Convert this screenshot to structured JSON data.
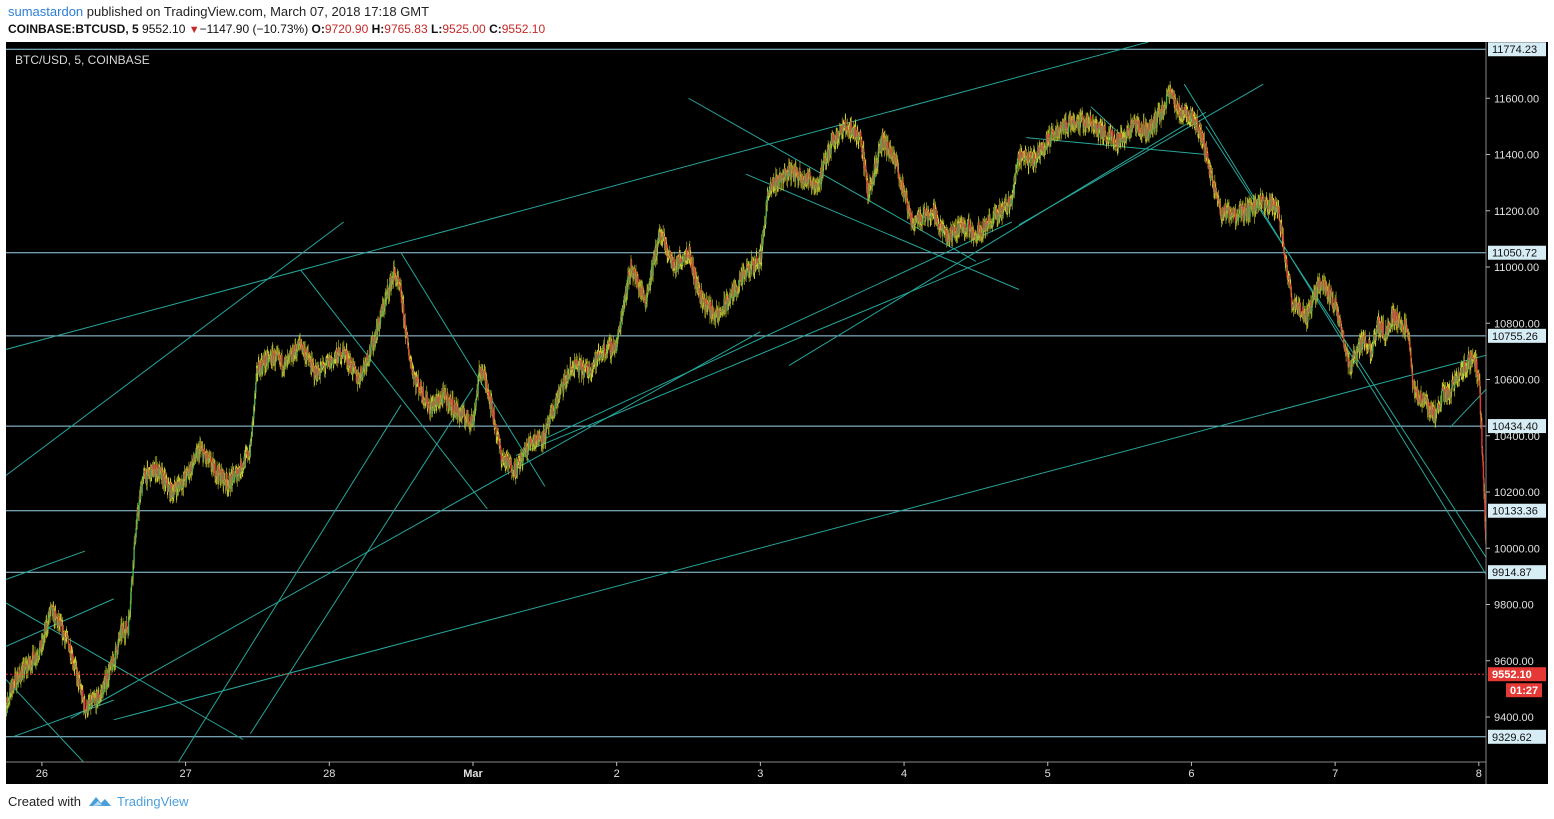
{
  "header": {
    "publisher": "sumastardon",
    "published_text": "published on TradingView.com, March 07, 2018 17:18 GMT",
    "symbol": "COINBASE:BTCUSD, 5",
    "last": "9552.10",
    "change_arrow": "▼",
    "change": "−1147.90 (−10.73%)",
    "o_label": "O:",
    "o_value": "9720.90",
    "h_label": "H:",
    "h_value": "9765.83",
    "l_label": "L:",
    "l_value": "9525.00",
    "c_label": "C:",
    "c_value": "9552.10"
  },
  "footer": {
    "created_with": "Created with",
    "brand": "TradingView"
  },
  "colors": {
    "background": "#000000",
    "up": "#4caf50",
    "down": "#e53935",
    "wick": "#cccc33",
    "trendline": "#26a69a",
    "level": "#9ad3e8",
    "last_price": "#e53935",
    "axis_bg": "#000000"
  },
  "chart_data": {
    "type": "candlestick",
    "title": "BTC/USD, 5, COINBASE",
    "x_ticks": [
      "26",
      "27",
      "28",
      "Mar",
      "2",
      "3",
      "4",
      "5",
      "6",
      "7",
      "8"
    ],
    "y_ticks": [
      9400,
      9600,
      9800,
      10000,
      10200,
      10400,
      10600,
      10800,
      11000,
      11200,
      11400,
      11600
    ],
    "ylim": [
      9240,
      11800
    ],
    "xlim_days": [
      -0.25,
      10.05
    ],
    "levels": [
      {
        "value": 11774.23,
        "label": "11774.23"
      },
      {
        "value": 11050.72,
        "label": "11050.72"
      },
      {
        "value": 10755.26,
        "label": "10755.26"
      },
      {
        "value": 10434.4,
        "label": "10434.40"
      },
      {
        "value": 10133.36,
        "label": "10133.36"
      },
      {
        "value": 9914.87,
        "label": "9914.87"
      },
      {
        "value": 9329.62,
        "label": "9329.62"
      }
    ],
    "last_price": {
      "value": 9552.1,
      "label": "9552.10",
      "countdown": "01:27"
    },
    "price_path": [
      [
        -0.3,
        9350
      ],
      [
        -0.2,
        9520
      ],
      [
        -0.1,
        9580
      ],
      [
        0.0,
        9650
      ],
      [
        0.06,
        9780
      ],
      [
        0.15,
        9700
      ],
      [
        0.2,
        9640
      ],
      [
        0.3,
        9430
      ],
      [
        0.4,
        9470
      ],
      [
        0.5,
        9600
      ],
      [
        0.55,
        9700
      ],
      [
        0.6,
        9720
      ],
      [
        0.65,
        10050
      ],
      [
        0.7,
        10250
      ],
      [
        0.8,
        10280
      ],
      [
        0.9,
        10200
      ],
      [
        1.0,
        10250
      ],
      [
        1.1,
        10350
      ],
      [
        1.2,
        10280
      ],
      [
        1.3,
        10230
      ],
      [
        1.4,
        10300
      ],
      [
        1.45,
        10350
      ],
      [
        1.5,
        10640
      ],
      [
        1.6,
        10680
      ],
      [
        1.7,
        10650
      ],
      [
        1.8,
        10730
      ],
      [
        1.9,
        10620
      ],
      [
        2.0,
        10660
      ],
      [
        2.1,
        10700
      ],
      [
        2.2,
        10600
      ],
      [
        2.3,
        10720
      ],
      [
        2.4,
        10900
      ],
      [
        2.45,
        10980
      ],
      [
        2.5,
        10900
      ],
      [
        2.55,
        10700
      ],
      [
        2.6,
        10600
      ],
      [
        2.7,
        10500
      ],
      [
        2.8,
        10540
      ],
      [
        2.9,
        10480
      ],
      [
        3.0,
        10450
      ],
      [
        3.05,
        10640
      ],
      [
        3.1,
        10580
      ],
      [
        3.2,
        10320
      ],
      [
        3.3,
        10280
      ],
      [
        3.4,
        10380
      ],
      [
        3.5,
        10400
      ],
      [
        3.6,
        10550
      ],
      [
        3.7,
        10650
      ],
      [
        3.8,
        10630
      ],
      [
        3.9,
        10700
      ],
      [
        4.0,
        10720
      ],
      [
        4.05,
        10880
      ],
      [
        4.1,
        11000
      ],
      [
        4.2,
        10880
      ],
      [
        4.3,
        11120
      ],
      [
        4.4,
        11000
      ],
      [
        4.5,
        11060
      ],
      [
        4.55,
        10950
      ],
      [
        4.6,
        10880
      ],
      [
        4.7,
        10820
      ],
      [
        4.8,
        10900
      ],
      [
        4.9,
        10980
      ],
      [
        5.0,
        11030
      ],
      [
        5.05,
        11250
      ],
      [
        5.1,
        11300
      ],
      [
        5.2,
        11340
      ],
      [
        5.3,
        11320
      ],
      [
        5.4,
        11290
      ],
      [
        5.5,
        11450
      ],
      [
        5.6,
        11500
      ],
      [
        5.7,
        11460
      ],
      [
        5.75,
        11260
      ],
      [
        5.85,
        11450
      ],
      [
        5.95,
        11360
      ],
      [
        6.05,
        11160
      ],
      [
        6.2,
        11200
      ],
      [
        6.3,
        11100
      ],
      [
        6.4,
        11150
      ],
      [
        6.5,
        11120
      ],
      [
        6.6,
        11160
      ],
      [
        6.75,
        11240
      ],
      [
        6.8,
        11400
      ],
      [
        6.9,
        11380
      ],
      [
        7.0,
        11450
      ],
      [
        7.1,
        11500
      ],
      [
        7.2,
        11520
      ],
      [
        7.3,
        11510
      ],
      [
        7.4,
        11470
      ],
      [
        7.5,
        11450
      ],
      [
        7.6,
        11500
      ],
      [
        7.7,
        11480
      ],
      [
        7.8,
        11560
      ],
      [
        7.85,
        11620
      ],
      [
        7.9,
        11560
      ],
      [
        8.0,
        11540
      ],
      [
        8.05,
        11500
      ],
      [
        8.1,
        11400
      ],
      [
        8.2,
        11200
      ],
      [
        8.3,
        11180
      ],
      [
        8.4,
        11200
      ],
      [
        8.5,
        11230
      ],
      [
        8.6,
        11210
      ],
      [
        8.7,
        10880
      ],
      [
        8.75,
        10850
      ],
      [
        8.8,
        10820
      ],
      [
        8.9,
        10950
      ],
      [
        9.0,
        10870
      ],
      [
        9.05,
        10760
      ],
      [
        9.1,
        10640
      ],
      [
        9.15,
        10700
      ],
      [
        9.2,
        10750
      ],
      [
        9.25,
        10700
      ],
      [
        9.3,
        10800
      ],
      [
        9.35,
        10760
      ],
      [
        9.4,
        10830
      ],
      [
        9.5,
        10780
      ],
      [
        9.55,
        10560
      ],
      [
        9.6,
        10530
      ],
      [
        9.7,
        10470
      ],
      [
        9.75,
        10550
      ],
      [
        9.8,
        10550
      ],
      [
        9.85,
        10610
      ],
      [
        9.9,
        10640
      ],
      [
        9.95,
        10680
      ],
      [
        10.0,
        10620
      ],
      [
        10.02,
        10400
      ],
      [
        10.04,
        10150
      ],
      [
        10.06,
        9820
      ],
      [
        10.08,
        9552
      ]
    ],
    "trendlines": [
      [
        -0.3,
        10700,
        7.7,
        11800
      ],
      [
        -0.3,
        10240,
        2.1,
        11160
      ],
      [
        -0.3,
        9880,
        0.3,
        9990
      ],
      [
        -0.3,
        9640,
        0.5,
        9820
      ],
      [
        -0.2,
        9330,
        0.5,
        9460
      ],
      [
        0.5,
        9390,
        10.3,
        10720
      ],
      [
        0.2,
        9395,
        5.0,
        10770
      ],
      [
        -0.3,
        9560,
        0.4,
        9180
      ],
      [
        -0.3,
        9820,
        1.4,
        9320
      ],
      [
        0.95,
        9240,
        2.5,
        10510
      ],
      [
        1.45,
        9340,
        3.0,
        10570
      ],
      [
        2.5,
        11050,
        3.5,
        10220
      ],
      [
        1.8,
        10990,
        3.1,
        10140
      ],
      [
        3.3,
        10330,
        6.6,
        11030
      ],
      [
        3.5,
        10390,
        6.75,
        11160
      ],
      [
        4.5,
        11600,
        6.5,
        11020
      ],
      [
        4.9,
        11330,
        6.8,
        10920
      ],
      [
        6.8,
        11150,
        8.5,
        11650
      ],
      [
        5.2,
        10650,
        8.1,
        11550
      ],
      [
        6.85,
        11460,
        8.1,
        11400
      ],
      [
        7.3,
        11570,
        7.55,
        11450
      ],
      [
        8.1,
        11500,
        10.2,
        9850
      ],
      [
        7.95,
        11650,
        10.3,
        9700
      ],
      [
        9.8,
        10430,
        10.3,
        10700
      ]
    ]
  }
}
